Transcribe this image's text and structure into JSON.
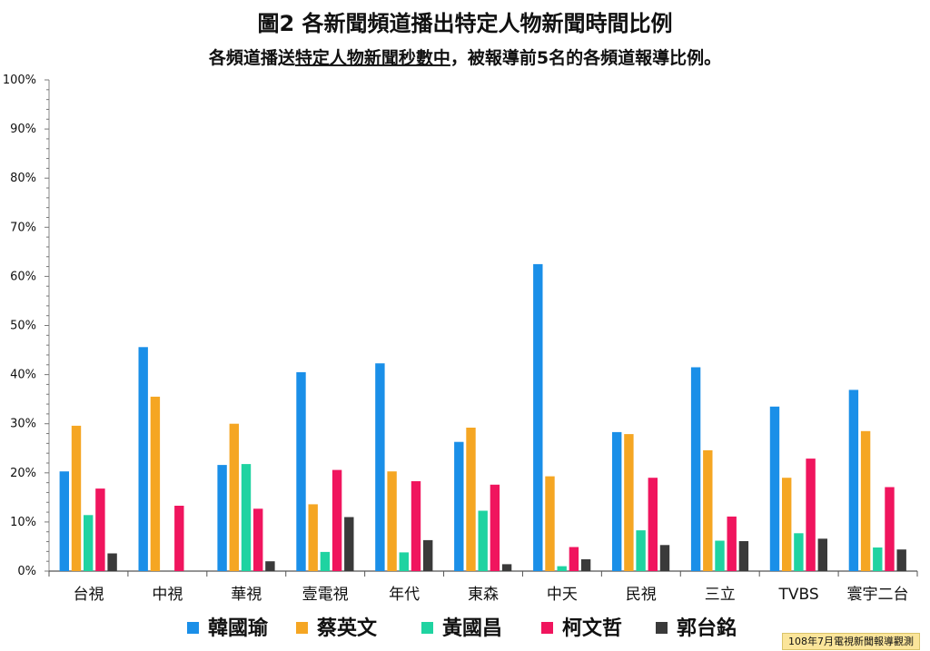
{
  "chart_data": {
    "type": "bar",
    "title": "圖2 各新聞頻道播出特定人物新聞時間比例",
    "subtitle_underlined": "特定人物新聞秒數中",
    "subtitle_prefix": "各頻道播送",
    "subtitle_suffix": "，被報導前5名的各頻道報導比例。",
    "ylim": [
      0,
      100
    ],
    "yticks": [
      "0%",
      "10%",
      "20%",
      "30%",
      "40%",
      "50%",
      "60%",
      "70%",
      "80%",
      "90%",
      "100%"
    ],
    "categories": [
      "台視",
      "中視",
      "華視",
      "壹電視",
      "年代",
      "東森",
      "中天",
      "民視",
      "三立",
      "TVBS",
      "寰宇二台"
    ],
    "series": [
      {
        "name": "韓國瑜",
        "color": "#1a8fe8",
        "values": [
          20.3,
          45.6,
          21.6,
          40.5,
          42.3,
          26.3,
          62.5,
          28.3,
          41.5,
          33.5,
          36.9
        ]
      },
      {
        "name": "蔡英文",
        "color": "#f5a623",
        "values": [
          29.6,
          35.5,
          30.0,
          13.6,
          20.3,
          29.2,
          19.3,
          27.9,
          24.6,
          19.0,
          28.5
        ]
      },
      {
        "name": "黃國昌",
        "color": "#1fd3a1",
        "values": [
          11.4,
          0,
          21.8,
          3.9,
          3.8,
          12.3,
          1.0,
          8.3,
          6.2,
          7.7,
          4.8
        ]
      },
      {
        "name": "柯文哲",
        "color": "#f0155e",
        "values": [
          16.8,
          13.3,
          12.7,
          20.6,
          18.3,
          17.6,
          4.9,
          19.0,
          11.1,
          22.9,
          17.1
        ]
      },
      {
        "name": "郭台銘",
        "color": "#3a3a3a",
        "values": [
          3.6,
          0,
          2.0,
          11.0,
          6.3,
          1.4,
          2.4,
          5.3,
          6.1,
          6.6,
          4.4
        ]
      }
    ],
    "source": "108年7月電視新聞報導觀測"
  }
}
